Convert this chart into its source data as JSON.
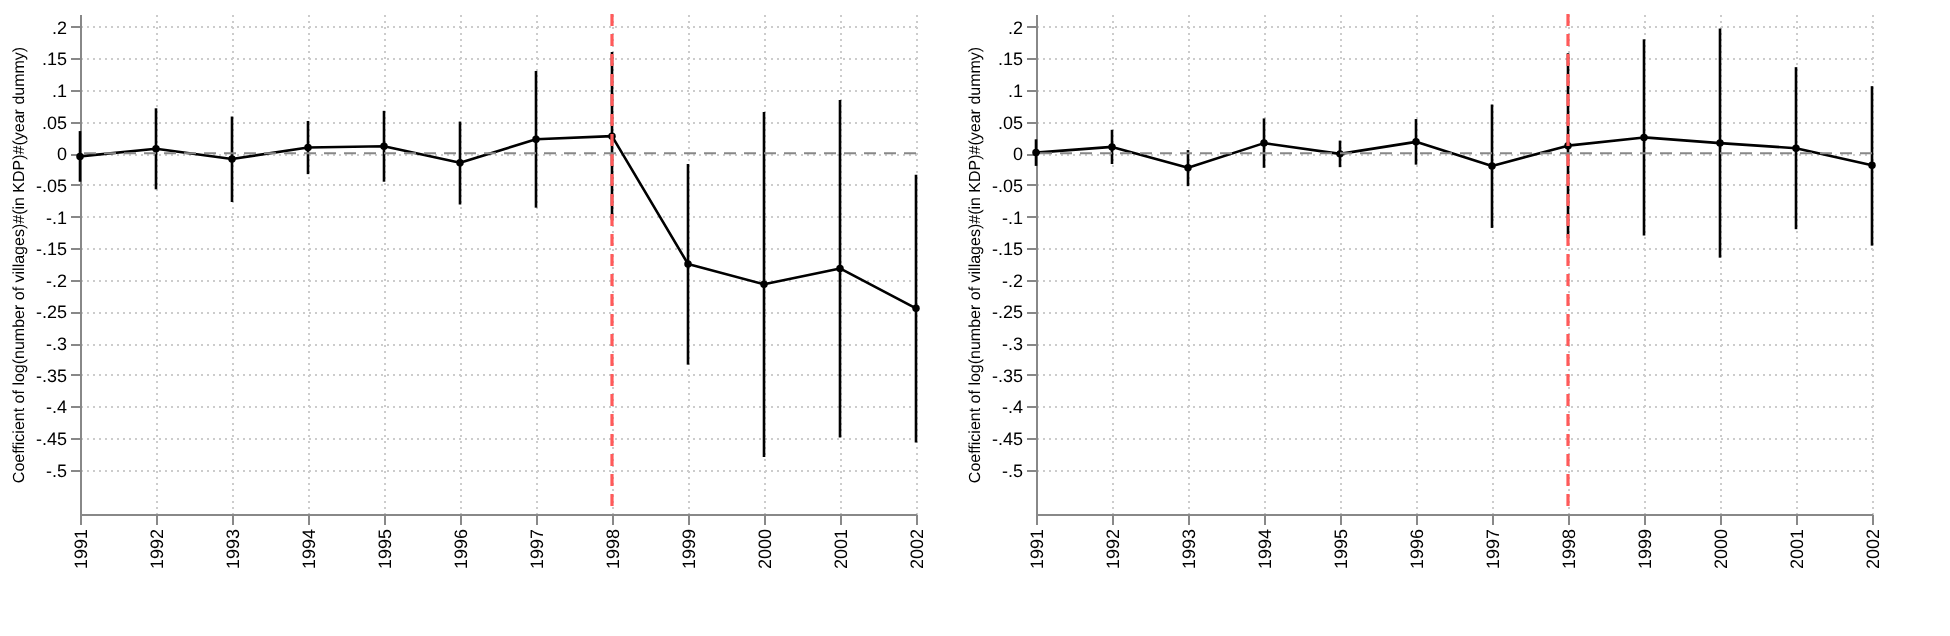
{
  "chart_data": [
    {
      "type": "line",
      "ylabel": "Coefficient of log(number of villages)#(in KDP)#(year dummy)",
      "x": [
        1991,
        1992,
        1993,
        1994,
        1995,
        1996,
        1997,
        1998,
        1999,
        2000,
        2001,
        2002
      ],
      "series": [
        {
          "color": "#000000",
          "values": [
            -0.005,
            0.007,
            -0.009,
            0.009,
            0.011,
            -0.015,
            0.022,
            0.027,
            -0.175,
            -0.207,
            -0.182,
            -0.245
          ],
          "errors": [
            [
              -0.045,
              0.035
            ],
            [
              -0.057,
              0.071
            ],
            [
              -0.077,
              0.058
            ],
            [
              -0.033,
              0.051
            ],
            [
              -0.045,
              0.067
            ],
            [
              -0.081,
              0.05
            ],
            [
              -0.086,
              0.13
            ],
            [
              -0.105,
              0.16
            ],
            [
              -0.334,
              -0.017
            ],
            [
              -0.48,
              0.065
            ],
            [
              -0.449,
              0.084
            ],
            [
              -0.457,
              -0.034
            ]
          ]
        }
      ],
      "marker": "circle",
      "line_style": "solid",
      "grid": true,
      "xlim": [
        1991,
        2002
      ],
      "xticks": [
        1991,
        1992,
        1993,
        1994,
        1995,
        1996,
        1997,
        1998,
        1999,
        2000,
        2001,
        2002
      ],
      "ylim": [
        -0.57,
        0.22
      ],
      "yticks": [
        {
          "value": 0.2,
          "label": ".2"
        },
        {
          "value": 0.15,
          "label": ".15"
        },
        {
          "value": 0.1,
          "label": ".1"
        },
        {
          "value": 0.05,
          "label": ".05"
        },
        0,
        {
          "value": -0.05,
          "label": "-.05"
        },
        {
          "value": -0.1,
          "label": "-.1"
        },
        {
          "value": -0.15,
          "label": "-.15"
        },
        {
          "value": -0.2,
          "label": "-.2"
        },
        {
          "value": -0.25,
          "label": "-.25"
        },
        {
          "value": -0.3,
          "label": "-.3"
        },
        {
          "value": -0.35,
          "label": "-.35"
        },
        {
          "value": -0.4,
          "label": "-.4"
        },
        {
          "value": -0.45,
          "label": "-.45"
        },
        {
          "value": -0.5,
          "label": "-.5"
        }
      ],
      "ref_lines": [
        {
          "axis": "x",
          "value": 1998,
          "color": "#ff5a5a",
          "line_style": "dashed"
        },
        {
          "axis": "y",
          "value": 0,
          "color": "#888888",
          "line_style": "dashed"
        }
      ]
    },
    {
      "type": "line",
      "ylabel": "Coefficient of log(number of villages)#(in KDP)#(year dummy)",
      "x": [
        1991,
        1992,
        1993,
        1994,
        1995,
        1996,
        1997,
        1998,
        1999,
        2000,
        2001,
        2002
      ],
      "series": [
        {
          "color": "#000000",
          "values": [
            0.001,
            0.01,
            -0.023,
            0.016,
            -0.001,
            0.018,
            -0.02,
            0.012,
            0.025,
            0.016,
            0.008,
            -0.019
          ],
          "errors": [
            [
              -0.02,
              0.022
            ],
            [
              -0.017,
              0.037
            ],
            [
              -0.052,
              0.005
            ],
            [
              -0.023,
              0.055
            ],
            [
              -0.022,
              0.02
            ],
            [
              -0.018,
              0.054
            ],
            [
              -0.118,
              0.077
            ],
            [
              -0.134,
              0.158
            ],
            [
              -0.13,
              0.18
            ],
            [
              -0.165,
              0.197
            ],
            [
              -0.12,
              0.136
            ],
            [
              -0.146,
              0.106
            ]
          ]
        }
      ],
      "marker": "circle",
      "line_style": "solid",
      "grid": true,
      "xlim": [
        1991,
        2002
      ],
      "xticks": [
        1991,
        1992,
        1993,
        1994,
        1995,
        1996,
        1997,
        1998,
        1999,
        2000,
        2001,
        2002
      ],
      "ylim": [
        -0.57,
        0.22
      ],
      "yticks": [
        {
          "value": 0.2,
          "label": ".2"
        },
        {
          "value": 0.15,
          "label": ".15"
        },
        {
          "value": 0.1,
          "label": ".1"
        },
        {
          "value": 0.05,
          "label": ".05"
        },
        0,
        {
          "value": -0.05,
          "label": "-.05"
        },
        {
          "value": -0.1,
          "label": "-.1"
        },
        {
          "value": -0.15,
          "label": "-.15"
        },
        {
          "value": -0.2,
          "label": "-.2"
        },
        {
          "value": -0.25,
          "label": "-.25"
        },
        {
          "value": -0.3,
          "label": "-.3"
        },
        {
          "value": -0.35,
          "label": "-.35"
        },
        {
          "value": -0.4,
          "label": "-.4"
        },
        {
          "value": -0.45,
          "label": "-.45"
        },
        {
          "value": -0.5,
          "label": "-.5"
        }
      ],
      "ref_lines": [
        {
          "axis": "x",
          "value": 1998,
          "color": "#ff5a5a",
          "line_style": "dashed"
        },
        {
          "axis": "y",
          "value": 0,
          "color": "#888888",
          "line_style": "dashed"
        }
      ]
    }
  ]
}
